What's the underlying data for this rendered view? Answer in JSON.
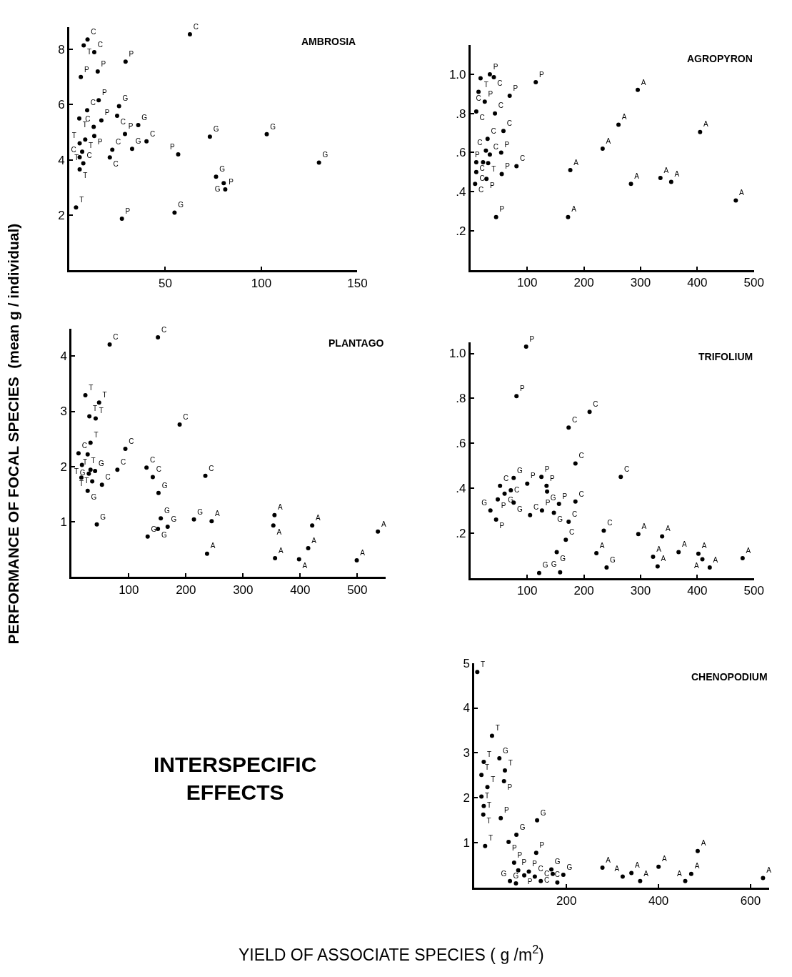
{
  "chart_data": [
    {
      "type": "scatter",
      "title": "AMBROSIA",
      "ylabel": "PERFORMANCE OF FOCAL SPECIES  (mean g / individual)",
      "marker": "circle",
      "xlim": [
        0,
        150
      ],
      "ylim": [
        0,
        8.8
      ],
      "xticks": [
        50,
        100,
        150
      ],
      "yticks": [
        2,
        4,
        6,
        8
      ],
      "series": [
        {
          "name": "C",
          "color": "#000000",
          "x": [
            62.8,
            9.5,
            13,
            9.3,
            24.9,
            12.7,
            40.2,
            22.4,
            21.1,
            5.4,
            7.3
          ],
          "values": [
            8.55,
            8.36,
            7.9,
            5.8,
            5.6,
            5.2,
            4.67,
            4.37,
            4.09,
            4.1,
            3.88
          ]
        },
        {
          "name": "T",
          "color": "#000000",
          "x": [
            7.5,
            5.2,
            5.4,
            8.3,
            6.7,
            5.4,
            3.5
          ],
          "values": [
            8.15,
            5.5,
            4.6,
            4.74,
            4.3,
            3.66,
            2.28
          ]
        },
        {
          "name": "P",
          "color": "#000000",
          "x": [
            29.3,
            6,
            14.8,
            15.3,
            16.7,
            13,
            29,
            56.7,
            81.2,
            27.4
          ],
          "values": [
            7.56,
            7.0,
            7.2,
            6.16,
            5.43,
            4.87,
            4.94,
            4.2,
            2.93,
            1.87
          ]
        },
        {
          "name": "G",
          "color": "#000000",
          "x": [
            25.9,
            35.9,
            73.2,
            102.8,
            32.7,
            130,
            76.4,
            80.4,
            54.8
          ],
          "values": [
            5.95,
            5.26,
            4.84,
            4.93,
            4.4,
            3.9,
            3.39,
            3.16,
            2.09
          ]
        }
      ]
    },
    {
      "type": "scatter",
      "title": "AGROPYRON",
      "marker": "circle",
      "xlim": [
        0,
        500
      ],
      "ylim": [
        0,
        1.15
      ],
      "xticks": [
        100,
        200,
        300,
        400,
        500
      ],
      "yticks": [
        {
          "value": 0.2,
          "label": ".2"
        },
        {
          "value": 0.4,
          "label": ".4"
        },
        {
          "value": 0.6,
          "label": ".6"
        },
        {
          "value": 0.8,
          "label": ".8"
        },
        {
          "value": 1,
          "label": "1.0"
        }
      ],
      "series": [
        {
          "name": "T",
          "color": "#000000",
          "x": [
            17.6,
            31
          ],
          "values": [
            0.98,
            0.546
          ]
        },
        {
          "name": "P",
          "color": "#000000",
          "x": [
            34,
            115,
            69,
            25,
            54,
            22,
            55,
            28,
            45
          ],
          "values": [
            1.0,
            0.96,
            0.89,
            0.86,
            0.6,
            0.55,
            0.49,
            0.465,
            0.27
          ]
        },
        {
          "name": "C",
          "color": "#000000",
          "x": [
            41,
            14,
            10,
            43,
            58,
            30,
            27,
            34,
            81,
            10,
            10,
            8
          ],
          "values": [
            0.985,
            0.91,
            0.81,
            0.8,
            0.71,
            0.67,
            0.61,
            0.59,
            0.53,
            0.55,
            0.5,
            0.44
          ]
        },
        {
          "name": "A",
          "color": "#000000",
          "x": [
            295,
            261,
            405,
            233,
            176,
            335,
            354,
            283,
            468,
            172
          ],
          "values": [
            0.92,
            0.742,
            0.705,
            0.62,
            0.51,
            0.47,
            0.45,
            0.44,
            0.355,
            0.27
          ]
        }
      ]
    },
    {
      "type": "scatter",
      "title": "PLANTAGO",
      "marker": "circle",
      "xlim": [
        0,
        550
      ],
      "ylim": [
        0,
        4.5
      ],
      "xticks": [
        100,
        200,
        300,
        400,
        500
      ],
      "yticks": [
        1,
        2,
        3,
        4
      ],
      "series": [
        {
          "name": "C",
          "color": "#000000",
          "x": [
            66.5,
            151,
            189,
            94,
            12,
            80,
            131,
            142,
            234,
            53
          ],
          "values": [
            4.21,
            4.34,
            2.76,
            2.32,
            2.24,
            1.94,
            1.98,
            1.81,
            1.83,
            1.67
          ]
        },
        {
          "name": "T",
          "color": "#000000",
          "x": [
            24,
            48,
            31,
            42,
            33,
            28,
            18,
            33,
            36,
            17
          ],
          "values": [
            3.29,
            3.16,
            2.91,
            2.87,
            2.43,
            2.22,
            2.03,
            1.94,
            1.73,
            1.8
          ]
        },
        {
          "name": "G",
          "color": "#000000",
          "x": [
            41,
            30,
            28,
            152,
            156,
            214,
            44,
            151,
            168,
            133
          ],
          "values": [
            1.92,
            1.87,
            1.56,
            1.52,
            1.06,
            1.04,
            0.95,
            0.87,
            0.91,
            0.73
          ]
        },
        {
          "name": "A",
          "color": "#000000",
          "x": [
            355,
            245,
            353,
            421,
            536,
            414,
            237,
            356,
            398,
            499
          ],
          "values": [
            1.12,
            1.01,
            0.93,
            0.93,
            0.82,
            0.52,
            0.42,
            0.34,
            0.32,
            0.3
          ]
        }
      ]
    },
    {
      "type": "scatter",
      "title": "TRIFOLIUM",
      "marker": "circle",
      "xlim": [
        0,
        500
      ],
      "ylim": [
        0,
        1.05
      ],
      "xticks": [
        100,
        200,
        300,
        400,
        500
      ],
      "yticks": [
        {
          "value": 0.2,
          "label": ".2"
        },
        {
          "value": 0.4,
          "label": ".4"
        },
        {
          "value": 0.6,
          "label": ".6"
        },
        {
          "value": 0.8,
          "label": ".8"
        },
        {
          "value": 1,
          "label": "1.0"
        }
      ],
      "series": [
        {
          "name": "P",
          "color": "#000000",
          "x": [
            98,
            81,
            100,
            125,
            134,
            48,
            156,
            126,
            45
          ],
          "values": [
            1.03,
            0.81,
            0.42,
            0.45,
            0.41,
            0.35,
            0.33,
            0.3,
            0.26
          ]
        },
        {
          "name": "C",
          "color": "#000000",
          "x": [
            210,
            173,
            185,
            265,
            52,
            71,
            185,
            105,
            173,
            235,
            168
          ],
          "values": [
            0.74,
            0.67,
            0.51,
            0.45,
            0.41,
            0.39,
            0.34,
            0.28,
            0.25,
            0.21,
            0.17
          ]
        },
        {
          "name": "G",
          "color": "#000000",
          "x": [
            76,
            135,
            60,
            76,
            35,
            147,
            152,
            240,
            121,
            158
          ],
          "values": [
            0.445,
            0.385,
            0.375,
            0.335,
            0.3,
            0.29,
            0.115,
            0.046,
            0.022,
            0.025
          ]
        },
        {
          "name": "A",
          "color": "#000000",
          "x": [
            296,
            338,
            222,
            367,
            402,
            409,
            322,
            480,
            330,
            422
          ],
          "values": [
            0.195,
            0.185,
            0.11,
            0.115,
            0.108,
            0.083,
            0.094,
            0.088,
            0.051,
            0.046
          ]
        }
      ]
    },
    {
      "type": "scatter",
      "title": "CHENOPODIUM",
      "xlabel": "YIELD OF ASSOCIATE SPECIES ( g /m$^{2}$)",
      "annotations": [
        "INTERSPECIFIC EFFECTS"
      ],
      "marker": "circle",
      "xlim": [
        0,
        640
      ],
      "ylim": [
        0,
        5
      ],
      "xticks": [
        200,
        400,
        600
      ],
      "yticks": [
        1,
        2,
        3,
        4,
        5
      ],
      "series": [
        {
          "name": "T",
          "color": "#000000",
          "x": [
            6,
            38,
            20,
            66,
            15,
            28,
            15,
            20,
            19,
            23
          ],
          "values": [
            4.8,
            3.38,
            2.8,
            2.61,
            2.51,
            2.24,
            2.03,
            1.82,
            1.63,
            0.93
          ]
        },
        {
          "name": "G",
          "color": "#000000",
          "x": [
            54,
            136,
            91,
            167,
            193,
            77,
            90
          ],
          "values": [
            2.88,
            1.5,
            1.18,
            0.41,
            0.29,
            0.15,
            0.1
          ]
        },
        {
          "name": "P",
          "color": "#000000",
          "x": [
            64,
            57,
            74,
            134,
            86,
            95,
            118,
            108
          ],
          "values": [
            2.37,
            1.55,
            1.02,
            0.78,
            0.56,
            0.39,
            0.36,
            0.28
          ]
        },
        {
          "name": "C",
          "color": "#000000",
          "x": [
            170,
            131,
            144,
            180
          ],
          "values": [
            0.31,
            0.25,
            0.15,
            0.12
          ]
        },
        {
          "name": "A",
          "color": "#000000",
          "x": [
            485,
            278,
            400,
            341,
            322,
            471,
            627,
            360,
            458
          ],
          "values": [
            0.82,
            0.45,
            0.47,
            0.33,
            0.25,
            0.31,
            0.22,
            0.15,
            0.15
          ]
        }
      ]
    }
  ]
}
